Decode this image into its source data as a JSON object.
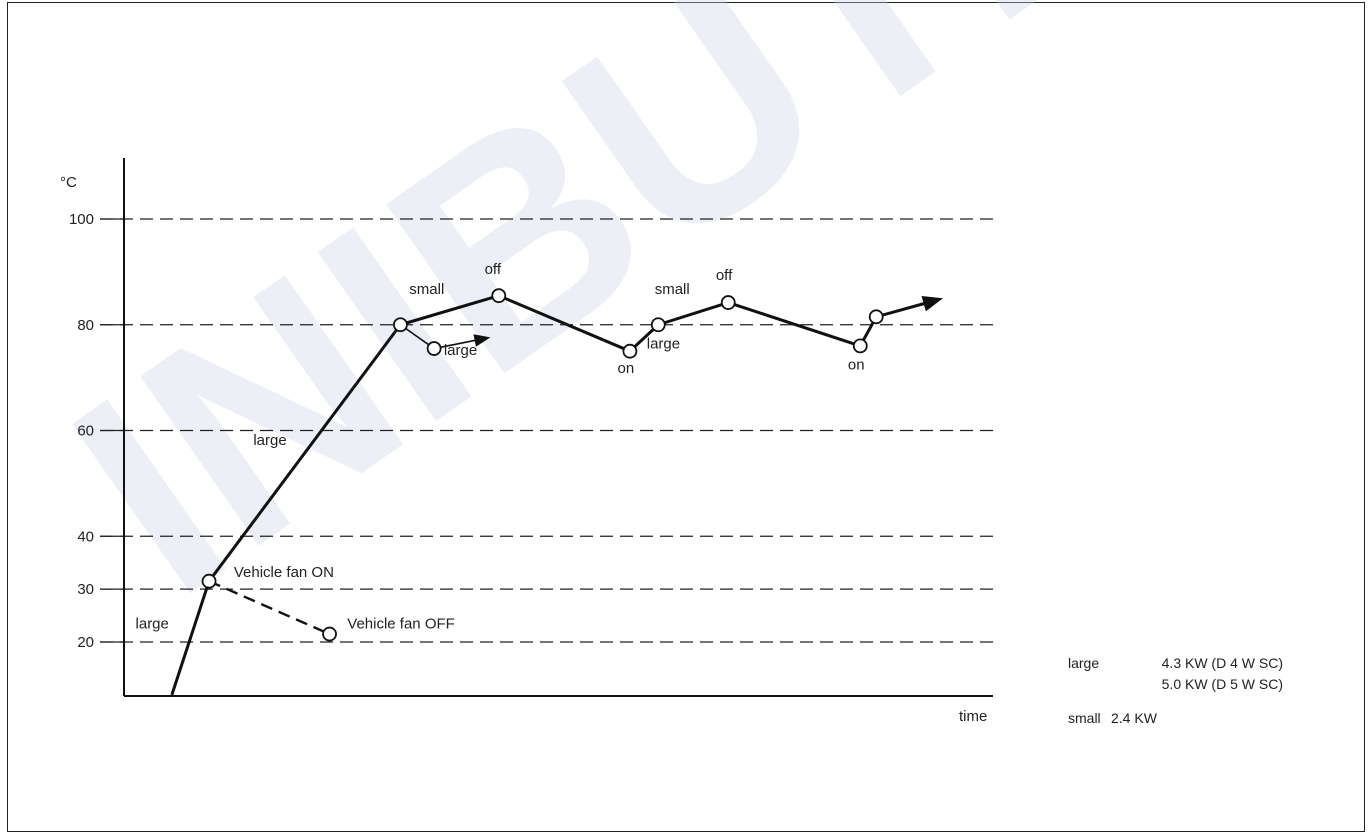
{
  "watermark": "INIBUTLE",
  "chart_data": {
    "type": "line",
    "y_unit_label": "°C",
    "xlabel": "time",
    "y_ticks": [
      100,
      80,
      60,
      40,
      30,
      20
    ],
    "ylim": [
      10,
      110
    ],
    "xlim": [
      0,
      100
    ],
    "grid_dashed": true,
    "series": [
      {
        "style": "solid-thick",
        "points": [
          {
            "x": 5.4,
            "y": 10
          },
          {
            "x": 9.6,
            "y": 31.5
          },
          {
            "x": 31.2,
            "y": 80
          },
          {
            "x": 42.3,
            "y": 85.5
          },
          {
            "x": 57.1,
            "y": 75
          },
          {
            "x": 60.3,
            "y": 80
          },
          {
            "x": 68.2,
            "y": 84.2
          },
          {
            "x": 83.1,
            "y": 76
          },
          {
            "x": 84.9,
            "y": 81.5
          },
          {
            "x": 92.0,
            "y": 84.8
          }
        ]
      },
      {
        "style": "solid-thin",
        "points": [
          {
            "x": 31.2,
            "y": 80
          },
          {
            "x": 35.0,
            "y": 75.5
          },
          {
            "x": 41.0,
            "y": 77.5
          }
        ]
      },
      {
        "style": "dashed",
        "points": [
          {
            "x": 9.6,
            "y": 31.5
          },
          {
            "x": 23.2,
            "y": 21.5
          }
        ]
      }
    ],
    "markers": [
      {
        "x": 9.6,
        "y": 31.5
      },
      {
        "x": 23.2,
        "y": 21.5
      },
      {
        "x": 31.2,
        "y": 80
      },
      {
        "x": 35.0,
        "y": 75.5
      },
      {
        "x": 42.3,
        "y": 85.5
      },
      {
        "x": 57.1,
        "y": 75
      },
      {
        "x": 60.3,
        "y": 80
      },
      {
        "x": 68.2,
        "y": 84.2
      },
      {
        "x": 83.1,
        "y": 76
      },
      {
        "x": 84.9,
        "y": 81.5
      }
    ],
    "annotations": [
      {
        "text": "large",
        "x": 1.3,
        "y": 22.6
      },
      {
        "text": "Vehicle fan ON",
        "x": 12.4,
        "y": 32.3
      },
      {
        "text": "Vehicle fan OFF",
        "x": 25.2,
        "y": 22.6
      },
      {
        "text": "large",
        "x": 14.6,
        "y": 57.3
      },
      {
        "text": "small",
        "x": 32.2,
        "y": 85.8
      },
      {
        "text": "off",
        "x": 40.7,
        "y": 89.6
      },
      {
        "text": "large",
        "x": 36.1,
        "y": 74.3
      },
      {
        "text": "on",
        "x": 55.7,
        "y": 70.9
      },
      {
        "text": "large",
        "x": 59.0,
        "y": 75.5
      },
      {
        "text": "small",
        "x": 59.9,
        "y": 85.8
      },
      {
        "text": "off",
        "x": 66.8,
        "y": 88.5
      },
      {
        "text": "on",
        "x": 81.7,
        "y": 71.5
      }
    ],
    "legend": {
      "large_label": "large",
      "large_line1": "4.3 KW (D 4 W SC)",
      "large_line2": "5.0 KW (D 5 W SC)",
      "small_label": "small",
      "small_line1": "2.4 KW"
    }
  }
}
